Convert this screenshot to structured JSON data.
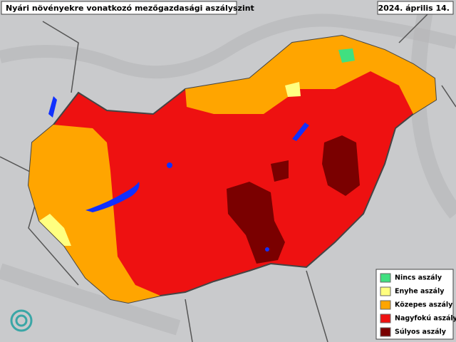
{
  "header": {
    "title": "Nyári növényekre vonatkozó mezőgazdasági aszályszint",
    "date": "2024. április 14."
  },
  "legend": {
    "items": [
      {
        "label": "Nincs aszály",
        "color": "#40e080"
      },
      {
        "label": "Enyhe aszály",
        "color": "#ffff80"
      },
      {
        "label": "Közepes aszály",
        "color": "#ffa500"
      },
      {
        "label": "Nagyfokú aszály",
        "color": "#ee1111"
      },
      {
        "label": "Súlyos aszály",
        "color": "#7a0000"
      }
    ]
  }
}
